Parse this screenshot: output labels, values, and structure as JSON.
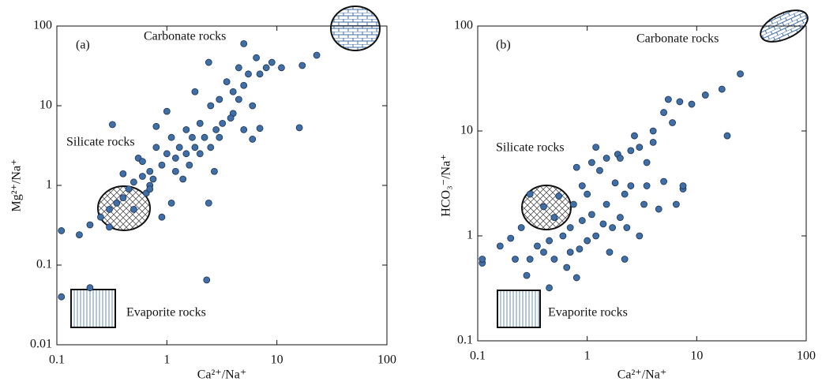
{
  "chart_data": [
    {
      "type": "scatter",
      "panel_label": "(a)",
      "xlabel": "Ca²⁺/Na⁺",
      "ylabel": "Mg²⁺/Na⁺",
      "log_x": true,
      "log_y": true,
      "color": "#3f6fa6",
      "xlim": [
        0.1,
        100
      ],
      "ylim": [
        0.01,
        100
      ],
      "xticks": [
        0.1,
        1,
        10,
        100
      ],
      "yticks": [
        0.01,
        0.1,
        1,
        10,
        100
      ],
      "annotations": [
        "Carbonate rocks",
        "Silicate rocks",
        "Evaporite rocks"
      ],
      "x": [
        0.11,
        0.11,
        0.16,
        0.2,
        0.2,
        0.25,
        0.3,
        0.3,
        0.32,
        0.35,
        0.4,
        0.4,
        0.45,
        0.5,
        0.5,
        0.55,
        0.6,
        0.65,
        0.7,
        0.7,
        0.75,
        0.8,
        0.8,
        0.9,
        0.9,
        1.0,
        1.0,
        1.1,
        1.1,
        1.2,
        1.2,
        1.3,
        1.4,
        1.5,
        1.5,
        1.6,
        1.8,
        1.8,
        2,
        2,
        2.2,
        2.3,
        2.4,
        2.4,
        2.5,
        2.5,
        2.7,
        3,
        3,
        3.2,
        3.5,
        4,
        4,
        4.5,
        5,
        5,
        5,
        5.5,
        6,
        6,
        6.5,
        7,
        7,
        8,
        9,
        11,
        16,
        17,
        23,
        4.5,
        3.8,
        2.8,
        1.7,
        0.6,
        0.7
      ],
      "values": [
        0.27,
        0.04,
        0.24,
        0.052,
        0.32,
        0.4,
        0.5,
        0.3,
        5.8,
        0.6,
        0.7,
        1.4,
        0.9,
        1.1,
        0.5,
        2.2,
        1.3,
        0.8,
        1.5,
        1.0,
        1.2,
        3.0,
        5.5,
        1.8,
        0.4,
        2.5,
        8.5,
        0.6,
        4,
        1.5,
        2.2,
        3,
        1.2,
        5,
        2.5,
        1.8,
        3,
        15,
        2.5,
        6,
        4,
        0.065,
        0.6,
        35,
        3,
        10,
        1.5,
        4,
        12,
        6,
        20,
        8,
        15,
        30,
        5,
        18,
        60,
        25,
        3.8,
        10,
        40,
        5.2,
        25,
        30,
        35,
        30,
        5.3,
        32,
        43,
        12,
        7,
        5,
        4,
        2,
        0.9
      ]
    },
    {
      "type": "scatter",
      "panel_label": "(b)",
      "xlabel": "Ca²⁺/Na⁺",
      "ylabel": "HCO₃⁻/Na⁺",
      "log_x": true,
      "log_y": true,
      "color": "#3f6fa6",
      "xlim": [
        0.1,
        100
      ],
      "ylim": [
        0.1,
        100
      ],
      "xticks": [
        0.1,
        1,
        10,
        100
      ],
      "yticks": [
        0.1,
        1,
        10,
        100
      ],
      "annotations": [
        "Carbonate rocks",
        "Silicate rocks",
        "Evaporite rocks"
      ],
      "x": [
        0.11,
        0.11,
        0.16,
        0.2,
        0.22,
        0.25,
        0.28,
        0.3,
        0.3,
        0.35,
        0.4,
        0.4,
        0.45,
        0.45,
        0.5,
        0.5,
        0.55,
        0.6,
        0.65,
        0.7,
        0.7,
        0.75,
        0.8,
        0.8,
        0.9,
        0.9,
        1.0,
        1.0,
        1.1,
        1.1,
        1.2,
        1.3,
        1.4,
        1.5,
        1.5,
        1.6,
        1.7,
        1.8,
        1.9,
        2,
        2,
        2.2,
        2.3,
        2.5,
        2.5,
        2.7,
        3,
        3,
        3.3,
        3.5,
        4,
        4.5,
        5,
        5,
        5.5,
        6,
        6.5,
        7,
        7.5,
        7.5,
        9,
        12,
        17,
        19,
        25,
        4,
        3.5,
        2.2,
        1.2,
        0.85
      ],
      "values": [
        0.55,
        0.6,
        0.8,
        0.95,
        0.6,
        1.2,
        0.42,
        0.6,
        2.5,
        0.8,
        0.7,
        1.9,
        0.9,
        0.32,
        1.5,
        0.6,
        2.4,
        1.0,
        0.5,
        0.7,
        1.2,
        2.0,
        4.5,
        0.4,
        3.0,
        1.4,
        0.9,
        2.5,
        5,
        1.6,
        1.0,
        4.2,
        1.3,
        2.0,
        5.5,
        0.7,
        1.2,
        3.2,
        6,
        1.5,
        5.5,
        0.6,
        1.2,
        3,
        6.5,
        9,
        1.0,
        7,
        2.0,
        5,
        10,
        1.8,
        3.3,
        15,
        20,
        12,
        2.0,
        19,
        2.8,
        3,
        18,
        22,
        25,
        9,
        35,
        7.8,
        3,
        2.5,
        7,
        0.75
      ]
    }
  ]
}
